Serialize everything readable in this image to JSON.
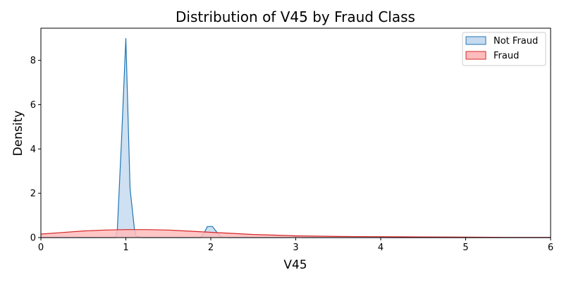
{
  "chart_data": {
    "type": "area",
    "title": "Distribution of V45 by Fraud Class",
    "xlabel": "V45",
    "ylabel": "Density",
    "xlim": [
      0,
      6
    ],
    "ylim": [
      0,
      9.45
    ],
    "xticks": [
      "0",
      "1",
      "2",
      "3",
      "4",
      "5",
      "6"
    ],
    "yticks": [
      "0",
      "2",
      "4",
      "6",
      "8"
    ],
    "grid": false,
    "legend_position": "top-right",
    "series": [
      {
        "name": "Not Fraud",
        "color": "#1f77b4",
        "fill_color": "#c6dbef",
        "points": [
          [
            0,
            0
          ],
          [
            0.88,
            0
          ],
          [
            0.9,
            0.35
          ],
          [
            0.95,
            4.5
          ],
          [
            1.0,
            9.0
          ],
          [
            1.05,
            2.2
          ],
          [
            1.1,
            0.4
          ],
          [
            1.12,
            0.05
          ],
          [
            1.2,
            0
          ],
          [
            1.88,
            0
          ],
          [
            1.92,
            0.2
          ],
          [
            1.96,
            0.5
          ],
          [
            2.02,
            0.5
          ],
          [
            2.07,
            0.25
          ],
          [
            2.12,
            0.03
          ],
          [
            2.2,
            0
          ],
          [
            2.93,
            0
          ],
          [
            2.98,
            0.04
          ],
          [
            3.0,
            0.06
          ],
          [
            3.02,
            0.04
          ],
          [
            3.07,
            0
          ],
          [
            6,
            0
          ]
        ]
      },
      {
        "name": "Fraud",
        "color": "#d62728",
        "fill_color": "#ffbcbc",
        "points": [
          [
            0,
            0.16
          ],
          [
            0.25,
            0.23
          ],
          [
            0.5,
            0.3
          ],
          [
            0.75,
            0.34
          ],
          [
            1.0,
            0.36
          ],
          [
            1.25,
            0.36
          ],
          [
            1.5,
            0.34
          ],
          [
            1.75,
            0.29
          ],
          [
            2.0,
            0.24
          ],
          [
            2.25,
            0.19
          ],
          [
            2.5,
            0.14
          ],
          [
            2.75,
            0.11
          ],
          [
            3.0,
            0.08
          ],
          [
            3.5,
            0.05
          ],
          [
            4.0,
            0.04
          ],
          [
            4.5,
            0.03
          ],
          [
            5.0,
            0.02
          ],
          [
            5.5,
            0.01
          ],
          [
            6.0,
            0.01
          ]
        ]
      }
    ]
  }
}
